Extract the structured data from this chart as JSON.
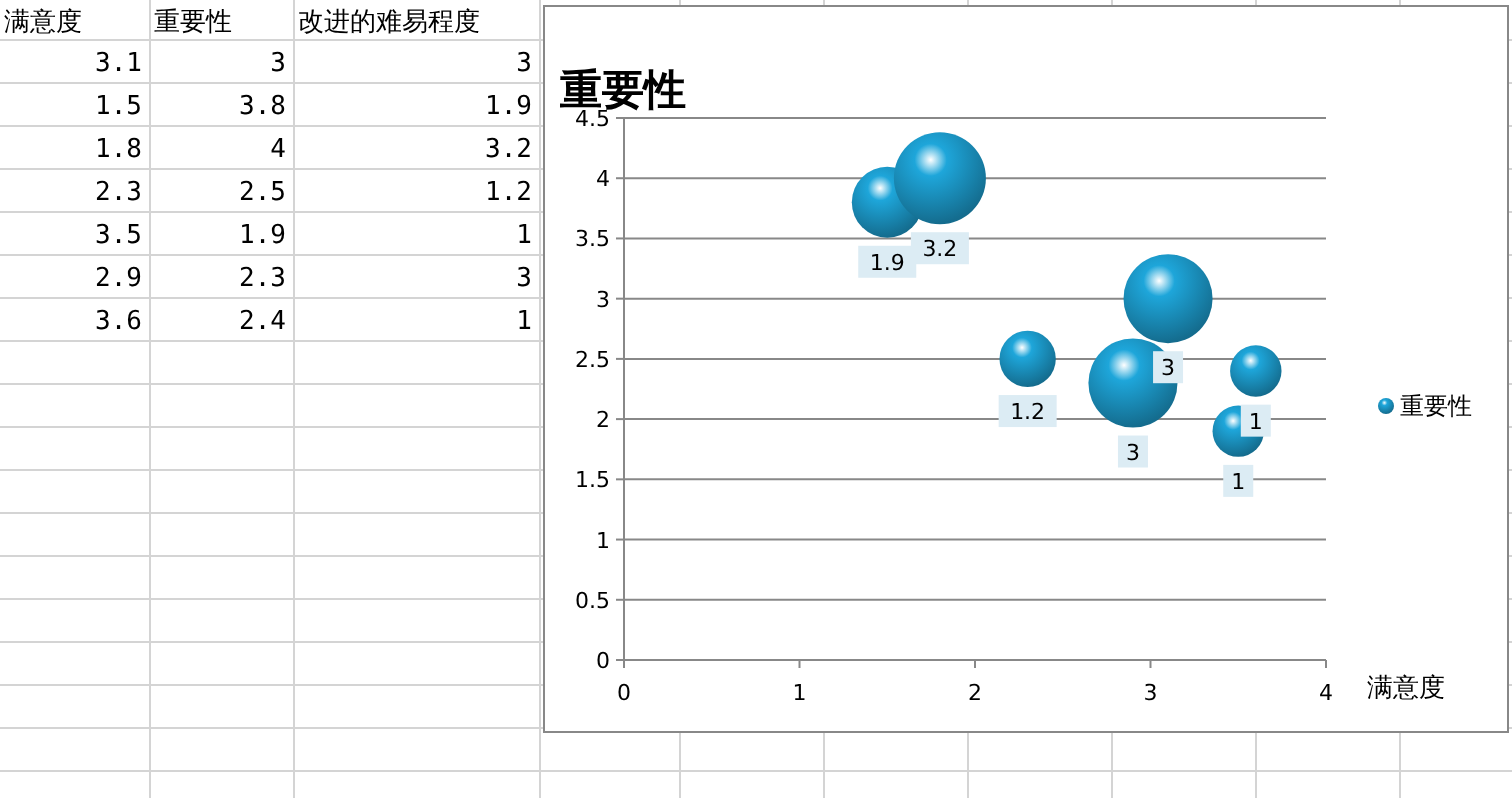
{
  "chart_data": [
    {
      "type": "other",
      "annotations": [
        "满意度",
        "重要性",
        "改进的难易程度",
        "3.1",
        "3",
        "3",
        "1.5",
        "3.8",
        "1.9",
        "1.8",
        "4",
        "3.2",
        "2.3",
        "2.5",
        "1.2",
        "3.5",
        "1.9",
        "1",
        "2.9",
        "2.3",
        "3",
        "3.6",
        "2.4",
        "1"
      ]
    },
    {
      "type": "bubble",
      "title": "重要性",
      "xlabel": "满意度",
      "x": [
        3.1,
        1.5,
        1.8,
        2.3,
        3.5,
        2.9,
        3.6
      ],
      "series": [
        {
          "name": "重要性",
          "color": "#1ea6da",
          "values": [
            3,
            3.8,
            4,
            2.5,
            1.9,
            2.3,
            2.4
          ],
          "sizes": [
            3,
            1.9,
            3.2,
            1.2,
            1,
            3,
            1
          ],
          "value_labels": [
            "3",
            "1.9",
            "3.2",
            "1.2",
            "1",
            "3",
            "1"
          ]
        }
      ],
      "xlim": [
        0,
        4
      ],
      "xticks": [
        0,
        1,
        2,
        3,
        4
      ],
      "ylim": [
        0,
        4.5
      ],
      "yticks": [
        0,
        0.5,
        1,
        1.5,
        2,
        2.5,
        3,
        3.5,
        4,
        4.5
      ],
      "grid": "y",
      "legend": "right"
    }
  ]
}
